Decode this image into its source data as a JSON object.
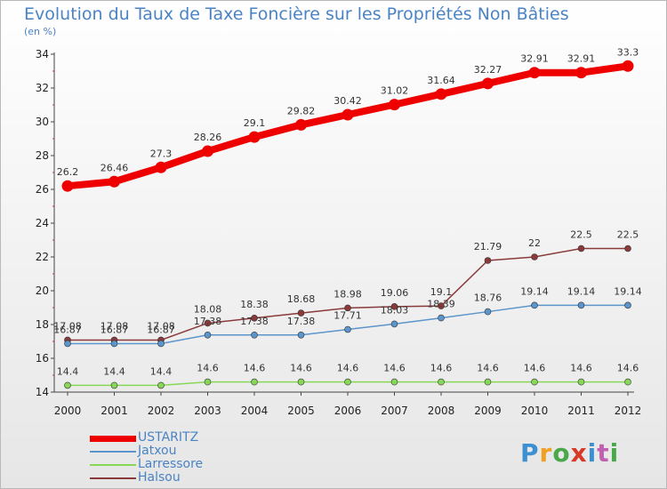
{
  "header": {
    "title": "Evolution du Taux de Taxe Foncière sur les Propriétés Non Bâties",
    "subtitle": "(en %)"
  },
  "brand": {
    "letters": [
      "P",
      "r",
      "o",
      "x",
      "i",
      "t",
      "i"
    ],
    "colors": [
      "#3c8fd0",
      "#f0a020",
      "#4aa84a",
      "#d83a2a",
      "#3c8fd0",
      "#c060b0",
      "#4aa84a"
    ]
  },
  "chart_data": {
    "type": "line",
    "title": "Evolution du Taux de Taxe Foncière sur les Propriétés Non Bâties",
    "ylabel": "(en %)",
    "xlabel": "",
    "x": [
      "2000",
      "2001",
      "2002",
      "2003",
      "2004",
      "2005",
      "2006",
      "2007",
      "2008",
      "2009",
      "2010",
      "2011",
      "2012"
    ],
    "ylim": [
      14,
      34
    ],
    "yticks": [
      "14",
      "16",
      "18",
      "20",
      "22",
      "24",
      "26",
      "28",
      "30",
      "32",
      "34"
    ],
    "grid": false,
    "legend_position": "bottom-left",
    "series": [
      {
        "name": "USTARITZ",
        "color": "#ee0000",
        "values": [
          26.2,
          26.46,
          27.3,
          28.26,
          29.1,
          29.82,
          30.42,
          31.02,
          31.64,
          32.27,
          32.91,
          32.91,
          33.3
        ],
        "labels": [
          "26.2",
          "26.46",
          "27.3",
          "28.26",
          "29.1",
          "29.82",
          "30.42",
          "31.02",
          "31.64",
          "32.27",
          "32.91",
          "32.91",
          "33.3"
        ]
      },
      {
        "name": "Jatxou",
        "color": "#5b95cc",
        "values": [
          16.87,
          16.87,
          16.87,
          17.38,
          17.38,
          17.38,
          17.71,
          18.03,
          18.39,
          18.76,
          19.14,
          19.14,
          19.14
        ],
        "labels": [
          "16.87",
          "16.87",
          "16.87",
          "17.38",
          "17.38",
          "17.38",
          "17.71",
          "18.03",
          "18.39",
          "18.76",
          "19.14",
          "19.14",
          "19.14"
        ]
      },
      {
        "name": "Larressore",
        "color": "#88d858",
        "values": [
          14.4,
          14.4,
          14.4,
          14.6,
          14.6,
          14.6,
          14.6,
          14.6,
          14.6,
          14.6,
          14.6,
          14.6,
          14.6
        ],
        "labels": [
          "14.4",
          "14.4",
          "14.4",
          "14.6",
          "14.6",
          "14.6",
          "14.6",
          "14.6",
          "14.6",
          "14.6",
          "14.6",
          "14.6",
          "14.6"
        ]
      },
      {
        "name": "Halsou",
        "color": "#8a3a3a",
        "values": [
          17.08,
          17.08,
          17.08,
          18.08,
          18.38,
          18.68,
          18.98,
          19.06,
          19.1,
          21.79,
          22,
          22.5,
          22.5
        ],
        "labels": [
          "17.08",
          "17.08",
          "17.08",
          "18.08",
          "18.38",
          "18.68",
          "18.98",
          "19.06",
          "19.1",
          "21.79",
          "22",
          "22.5",
          "22.5"
        ]
      }
    ]
  }
}
